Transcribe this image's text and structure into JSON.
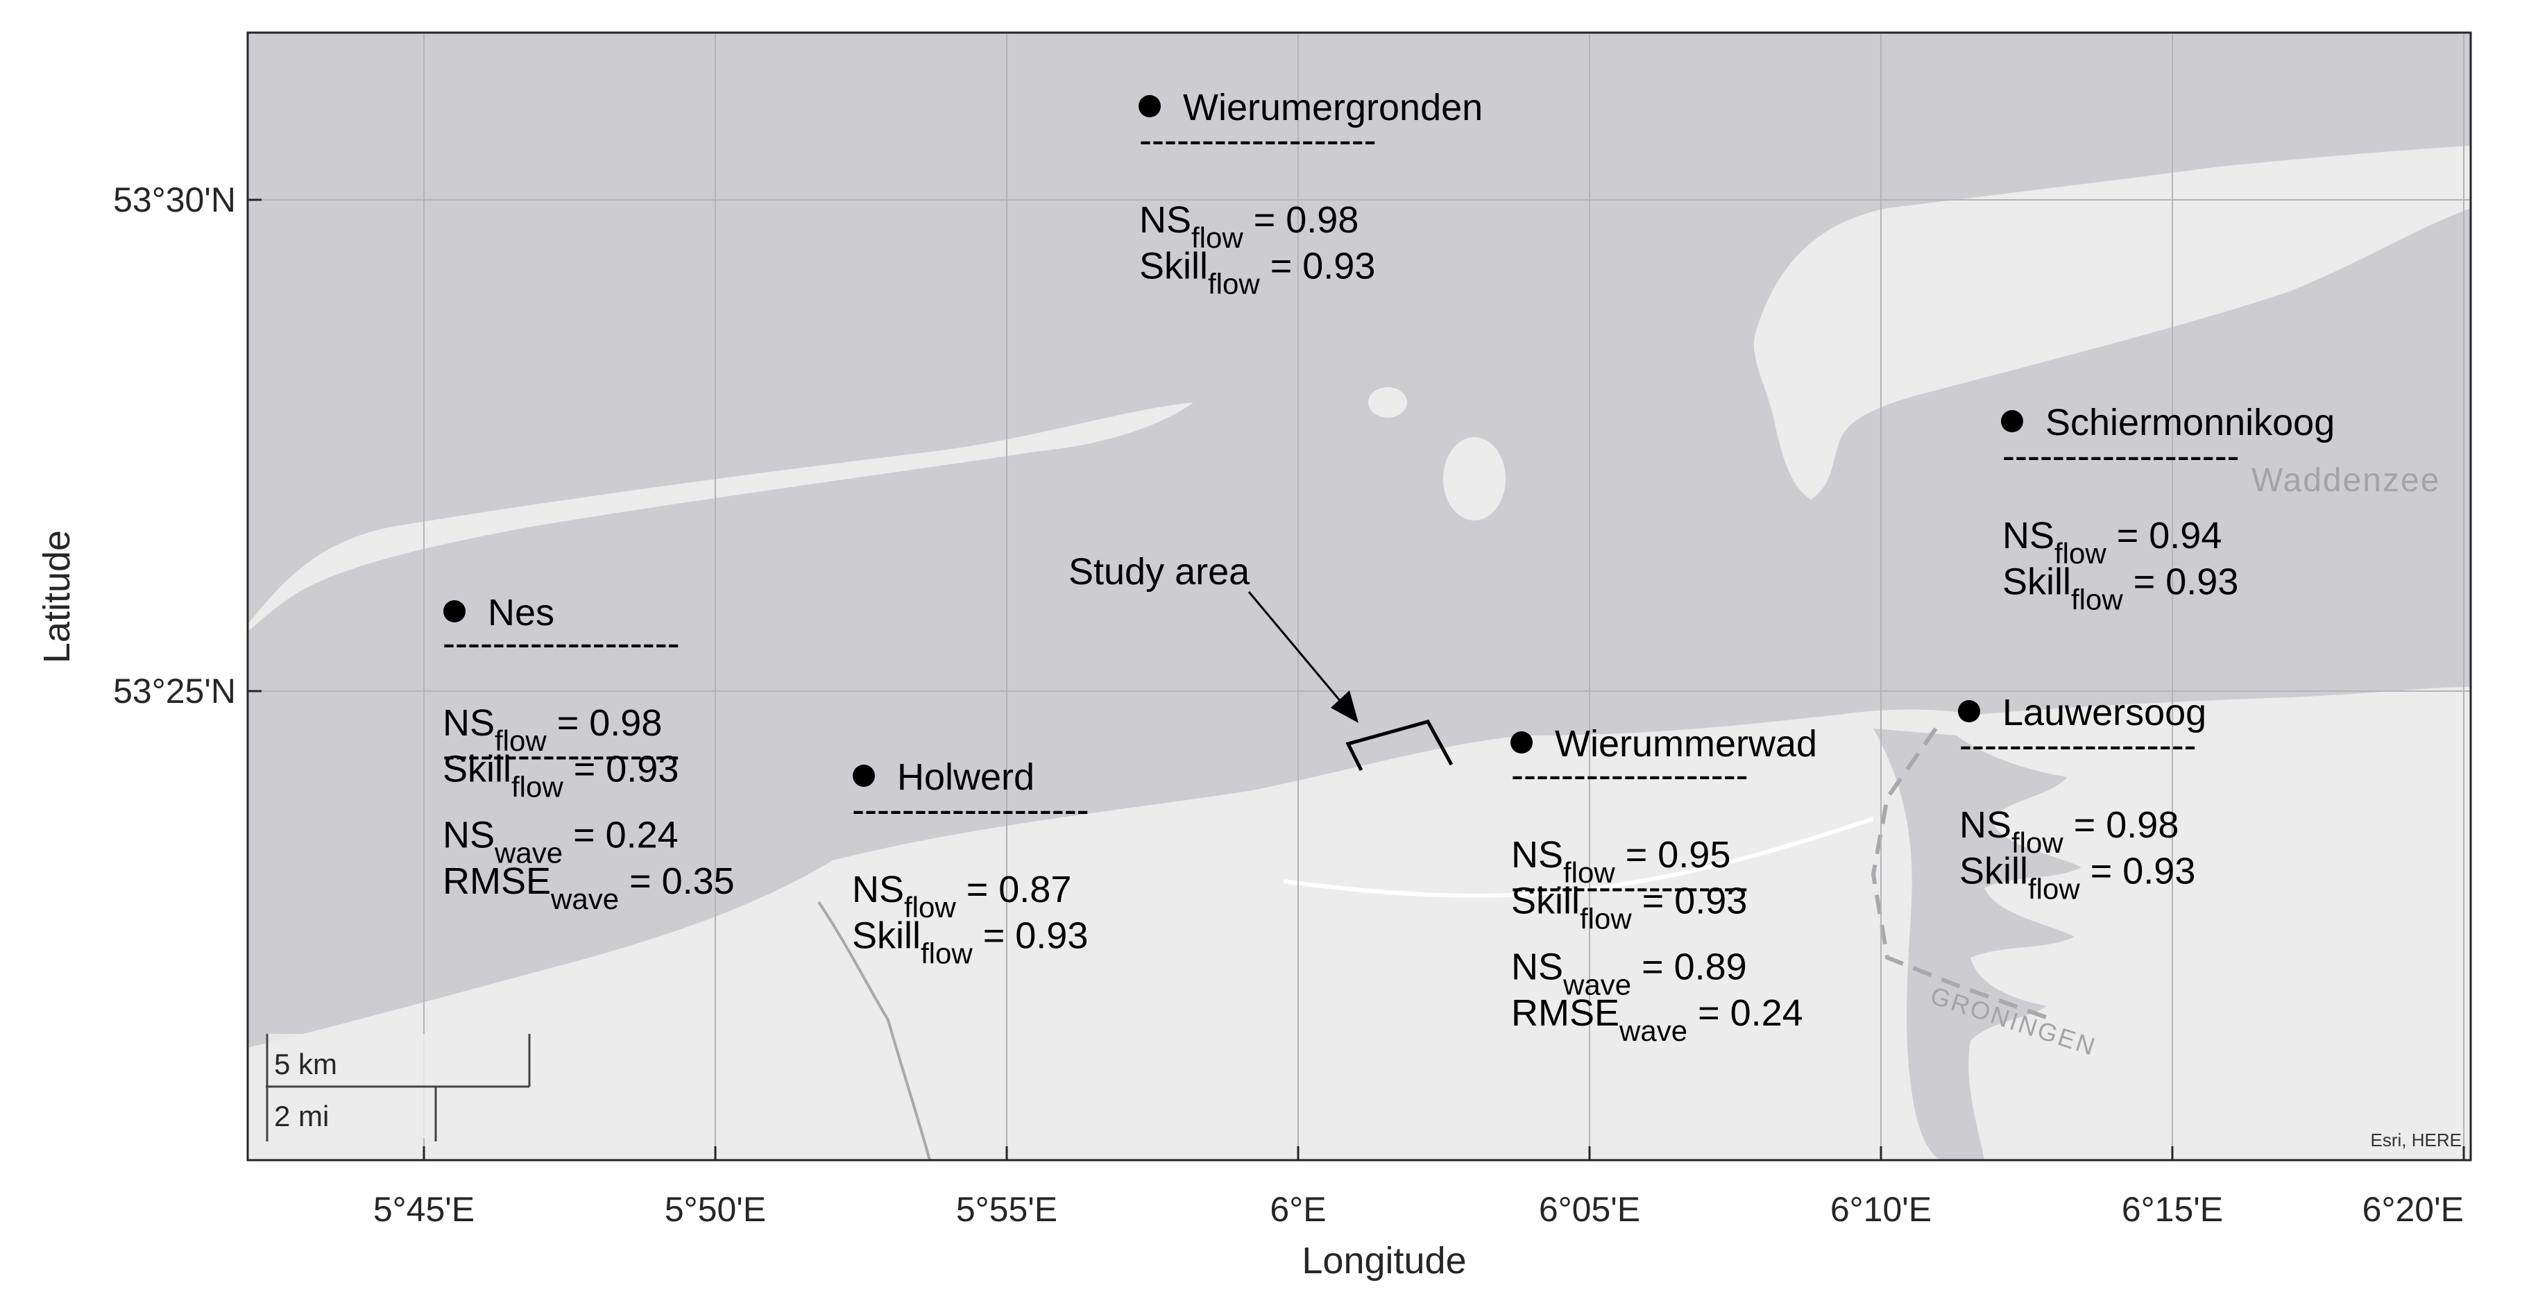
{
  "map": {
    "x_axis_title": "Longitude",
    "y_axis_title": "Latitude",
    "x_ticks": [
      "5°45'E",
      "5°50'E",
      "5°55'E",
      "6°E",
      "6°05'E",
      "6°10'E",
      "6°15'E",
      "6°20'E"
    ],
    "y_ticks": [
      "53°30'N",
      "53°25'N"
    ],
    "basemap_labels": {
      "sea": "Waddenzee",
      "province": "GRONINGEN"
    },
    "attribution": "Esri, HERE",
    "scale_bar": {
      "km_label": "5 km",
      "mi_label": "2 mi"
    },
    "study_area_label": "Study area",
    "separator": "-------------------",
    "colors": {
      "water": "#cdccd1",
      "land": "#ececec",
      "frame": "#262626",
      "grid": "#b4b4b8",
      "marker": "#000000"
    }
  },
  "stations": [
    {
      "name": "Wierumergronden",
      "metrics": [
        {
          "base": "NS",
          "sub": "flow",
          "value": "0.98"
        },
        {
          "base": "Skill",
          "sub": "flow",
          "value": "0.93"
        }
      ]
    },
    {
      "name": "Schiermonnikoog",
      "metrics": [
        {
          "base": "NS",
          "sub": "flow",
          "value": "0.94"
        },
        {
          "base": "Skill",
          "sub": "flow",
          "value": "0.93"
        }
      ]
    },
    {
      "name": "Nes",
      "metrics": [
        {
          "base": "NS",
          "sub": "flow",
          "value": "0.98"
        },
        {
          "base": "Skill",
          "sub": "flow",
          "value": "0.93"
        },
        {
          "base": "NS",
          "sub": "wave",
          "value": "0.24"
        },
        {
          "base": "RMSE",
          "sub": "wave",
          "value": "0.35"
        }
      ]
    },
    {
      "name": "Holwerd",
      "metrics": [
        {
          "base": "NS",
          "sub": "flow",
          "value": "0.87"
        },
        {
          "base": "Skill",
          "sub": "flow",
          "value": "0.93"
        }
      ]
    },
    {
      "name": "Wierummerwad",
      "metrics": [
        {
          "base": "NS",
          "sub": "flow",
          "value": "0.95"
        },
        {
          "base": "Skill",
          "sub": "flow",
          "value": "0.93"
        },
        {
          "base": "NS",
          "sub": "wave",
          "value": "0.89"
        },
        {
          "base": "RMSE",
          "sub": "wave",
          "value": "0.24"
        }
      ]
    },
    {
      "name": "Lauwersoog",
      "metrics": [
        {
          "base": "NS",
          "sub": "flow",
          "value": "0.98"
        },
        {
          "base": "Skill",
          "sub": "flow",
          "value": "0.93"
        }
      ]
    }
  ]
}
